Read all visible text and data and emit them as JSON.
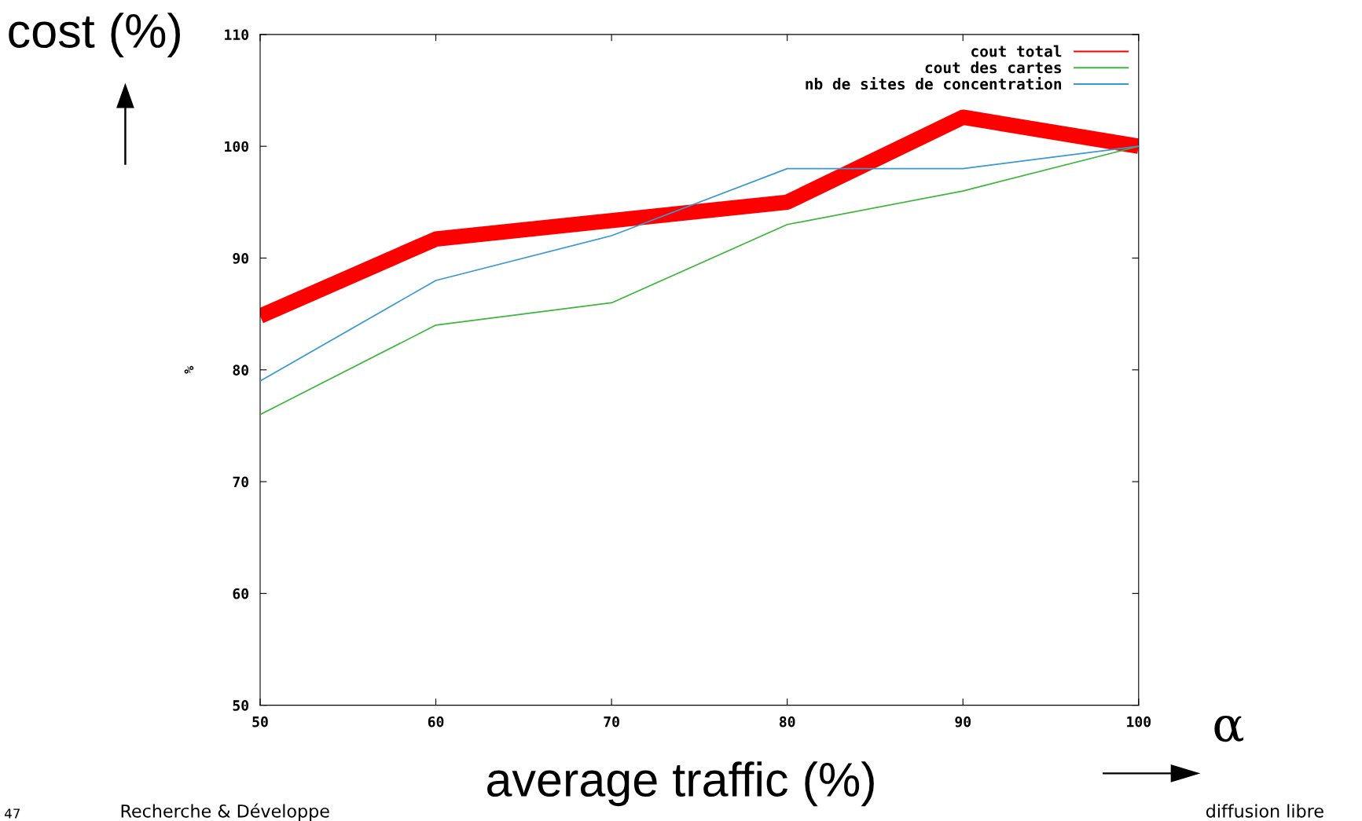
{
  "chart_data": {
    "type": "line",
    "xlabel": "average traffic (%)",
    "ylabel": "%",
    "xlim": [
      50,
      100
    ],
    "xticks": [
      50,
      60,
      70,
      80,
      90,
      100
    ],
    "ylim": [
      50,
      110
    ],
    "yticks": [
      50,
      60,
      70,
      80,
      90,
      100,
      110
    ],
    "legend": "top right",
    "grid": false,
    "line_style": "solid",
    "series": [
      {
        "name": "cout total",
        "color": "#ff0000",
        "x": [
          50,
          60,
          80,
          90,
          100
        ],
        "values": [
          84.8,
          91.7,
          95,
          102.6,
          100
        ]
      },
      {
        "name": "cout des cartes",
        "color": "#3cb53c",
        "x": [
          50,
          60,
          70,
          80,
          90,
          100
        ],
        "values": [
          76,
          84,
          86,
          93,
          96,
          100
        ]
      },
      {
        "name": "nb de sites de concentration",
        "color": "#3a98d0",
        "x": [
          50,
          60,
          70,
          80,
          90,
          100
        ],
        "values": [
          79,
          88,
          92,
          98,
          98,
          100
        ]
      }
    ],
    "annotations": [
      "cost (%)",
      "α",
      "47",
      "Recherche & Développe",
      "diffusion libre"
    ]
  }
}
